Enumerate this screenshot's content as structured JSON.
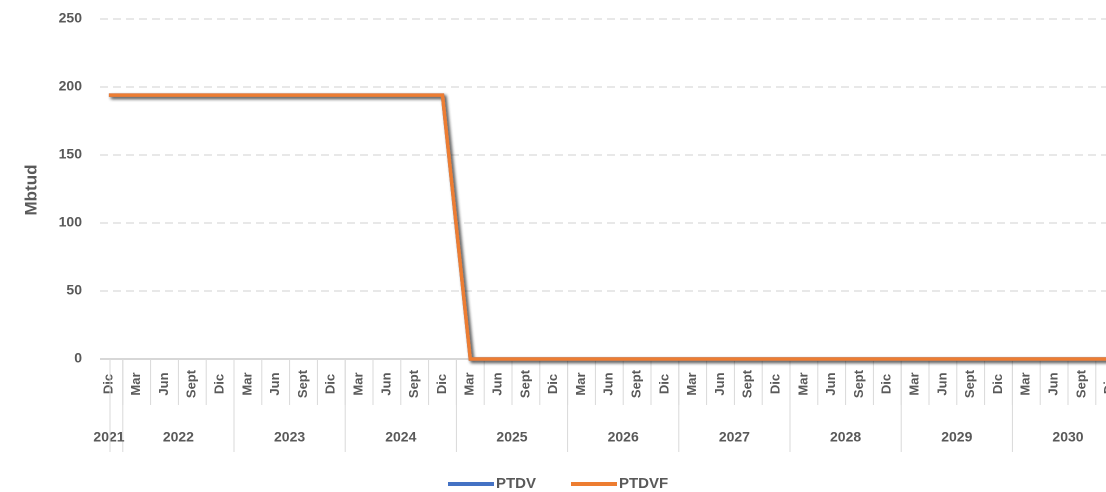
{
  "chart_data": {
    "type": "line",
    "y_label": "Mbtud",
    "category_groups": [
      {
        "label": "2021",
        "categories": [
          "Dic"
        ]
      },
      {
        "label": "2022",
        "categories": [
          "Mar",
          "Jun",
          "Sept",
          "Dic"
        ]
      },
      {
        "label": "2023",
        "categories": [
          "Mar",
          "Jun",
          "Sept",
          "Dic"
        ]
      },
      {
        "label": "2024",
        "categories": [
          "Mar",
          "Jun",
          "Sept",
          "Dic"
        ]
      },
      {
        "label": "2025",
        "categories": [
          "Mar",
          "Jun",
          "Sept",
          "Dic"
        ]
      },
      {
        "label": "2026",
        "categories": [
          "Mar",
          "Jun",
          "Sept",
          "Dic"
        ]
      },
      {
        "label": "2027",
        "categories": [
          "Mar",
          "Jun",
          "Sept",
          "Dic"
        ]
      },
      {
        "label": "2028",
        "categories": [
          "Mar",
          "Jun",
          "Sept",
          "Dic"
        ]
      },
      {
        "label": "2029",
        "categories": [
          "Mar",
          "Jun",
          "Sept",
          "Dic"
        ]
      },
      {
        "label": "2030",
        "categories": [
          "Mar",
          "Jun",
          "Sept",
          "Dic"
        ]
      }
    ],
    "series": [
      {
        "name": "PTDV",
        "color": "#4472c4",
        "values": [
          194,
          194,
          194,
          194,
          194,
          194,
          194,
          194,
          194,
          194,
          194,
          194,
          194,
          0,
          0,
          0,
          0,
          0,
          0,
          0,
          0,
          0,
          0,
          0,
          0,
          0,
          0,
          0,
          0,
          0,
          0,
          0,
          0,
          0,
          0,
          0,
          0
        ]
      },
      {
        "name": "PTDVF",
        "color": "#ed7d31",
        "values": [
          194,
          194,
          194,
          194,
          194,
          194,
          194,
          194,
          194,
          194,
          194,
          194,
          194,
          0,
          0,
          0,
          0,
          0,
          0,
          0,
          0,
          0,
          0,
          0,
          0,
          0,
          0,
          0,
          0,
          0,
          0,
          0,
          0,
          0,
          0,
          0,
          0
        ]
      }
    ],
    "ylim": [
      0,
      250
    ],
    "yticks": [
      0,
      50,
      100,
      150,
      200,
      250
    ],
    "grid": true
  }
}
